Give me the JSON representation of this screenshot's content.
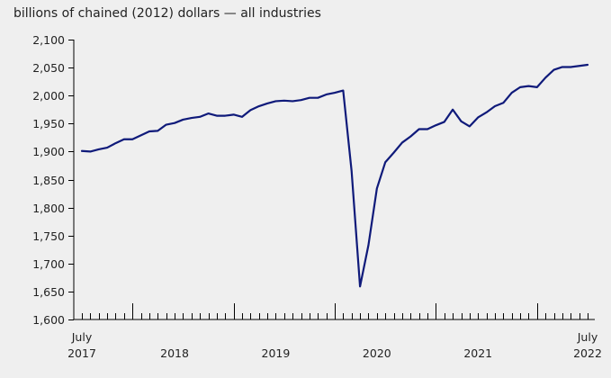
{
  "chart_data": {
    "type": "line",
    "title": "",
    "ylabel": "billions of chained (2012) dollars — all industries",
    "xlabel": "",
    "ylim": [
      1600,
      2100
    ],
    "yticks": [
      1600,
      1650,
      1700,
      1750,
      1800,
      1850,
      1900,
      1950,
      2000,
      2050,
      2100
    ],
    "ytick_labels": [
      "1,600",
      "1,650",
      "1,700",
      "1,750",
      "1,800",
      "1,850",
      "1,900",
      "1,950",
      "2,000",
      "2,050",
      "2,100"
    ],
    "x_start": "2017-07",
    "x_end": "2022-07",
    "x_ticks": [
      {
        "month": "2017-07",
        "line1": "July",
        "line2": "2017"
      },
      {
        "month": "2018-06",
        "line1": "",
        "line2": "2018"
      },
      {
        "month": "2019-06",
        "line1": "",
        "line2": "2019"
      },
      {
        "month": "2020-06",
        "line1": "",
        "line2": "2020"
      },
      {
        "month": "2021-06",
        "line1": "",
        "line2": "2021"
      },
      {
        "month": "2022-07",
        "line1": "July",
        "line2": "2022"
      }
    ],
    "major_tick_months": [
      "2018-01",
      "2019-01",
      "2020-01",
      "2021-01",
      "2022-01"
    ],
    "grid": false,
    "series": [
      {
        "name": "",
        "color": "#0f1a7a",
        "x": [
          "2017-07",
          "2017-08",
          "2017-09",
          "2017-10",
          "2017-11",
          "2017-12",
          "2018-01",
          "2018-02",
          "2018-03",
          "2018-04",
          "2018-05",
          "2018-06",
          "2018-07",
          "2018-08",
          "2018-09",
          "2018-10",
          "2018-11",
          "2018-12",
          "2019-01",
          "2019-02",
          "2019-03",
          "2019-04",
          "2019-05",
          "2019-06",
          "2019-07",
          "2019-08",
          "2019-09",
          "2019-10",
          "2019-11",
          "2019-12",
          "2020-01",
          "2020-02",
          "2020-03",
          "2020-04",
          "2020-05",
          "2020-06",
          "2020-07",
          "2020-08",
          "2020-09",
          "2020-10",
          "2020-11",
          "2020-12",
          "2021-01",
          "2021-02",
          "2021-03",
          "2021-04",
          "2021-05",
          "2021-06",
          "2021-07",
          "2021-08",
          "2021-09",
          "2021-10",
          "2021-11",
          "2021-12",
          "2022-01",
          "2022-02",
          "2022-03",
          "2022-04",
          "2022-05",
          "2022-06",
          "2022-07"
        ],
        "values": [
          1901,
          1900,
          1904,
          1907,
          1915,
          1922,
          1922,
          1929,
          1936,
          1937,
          1948,
          1951,
          1957,
          1960,
          1962,
          1968,
          1964,
          1964,
          1966,
          1962,
          1974,
          1981,
          1986,
          1990,
          1991,
          1990,
          1992,
          1996,
          1996,
          2002,
          2005,
          2009,
          1865,
          1659,
          1733,
          1834,
          1881,
          1898,
          1916,
          1927,
          1940,
          1940,
          1947,
          1953,
          1975,
          1954,
          1945,
          1961,
          1970,
          1981,
          1987,
          2005,
          2015,
          2017,
          2015,
          2032,
          2046,
          2051,
          2051,
          2053,
          2055
        ]
      }
    ]
  }
}
